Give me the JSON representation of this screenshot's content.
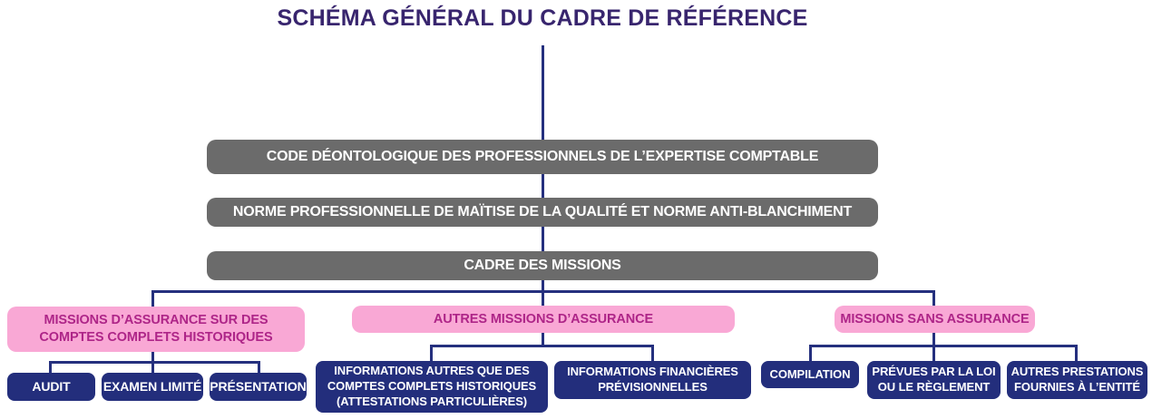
{
  "title": "SCHÉMA GÉNÉRAL DU CADRE DE RÉFÉRENCE",
  "gray_bars": [
    "CODE DÉONTOLOGIQUE DES PROFESSIONNELS DE L’EXPERTISE COMPTABLE",
    "NORME PROFESSIONNELLE DE MAÏTISE DE LA QUALITÉ ET NORME ANTI-BLANCHIMENT",
    "CADRE DES MISSIONS"
  ],
  "branches": [
    {
      "label": "MISSIONS D’ASSURANCE SUR DES\nCOMPTES COMPLETS HISTORIQUES",
      "children": [
        "AUDIT",
        "EXAMEN LIMITÉ",
        "PRÉSENTATION"
      ]
    },
    {
      "label": "AUTRES MISSIONS D’ASSURANCE",
      "children": [
        "INFORMATIONS AUTRES QUE DES\nCOMPTES COMPLETS HISTORIQUES\n(ATTESTATIONS PARTICULIÈRES)",
        "INFORMATIONS FINANCIÈRES\nPRÉVISIONNELLES"
      ]
    },
    {
      "label": "MISSIONS SANS ASSURANCE",
      "children": [
        "COMPILATION",
        "PRÉVUES PAR LA LOI\nOU LE RÈGLEMENT",
        "AUTRES PRESTATIONS\nFOURNIES À L’ENTITÉ"
      ]
    }
  ],
  "colors": {
    "title_text": "#38256E",
    "bar_bg": "#6B6B6B",
    "bar_text": "#FFFFFF",
    "branch_bg": "#F9A8D5",
    "branch_text": "#AE2588",
    "leaf_bg": "#232E7C",
    "leaf_text": "#FFFFFF",
    "connector": "#25307E"
  }
}
